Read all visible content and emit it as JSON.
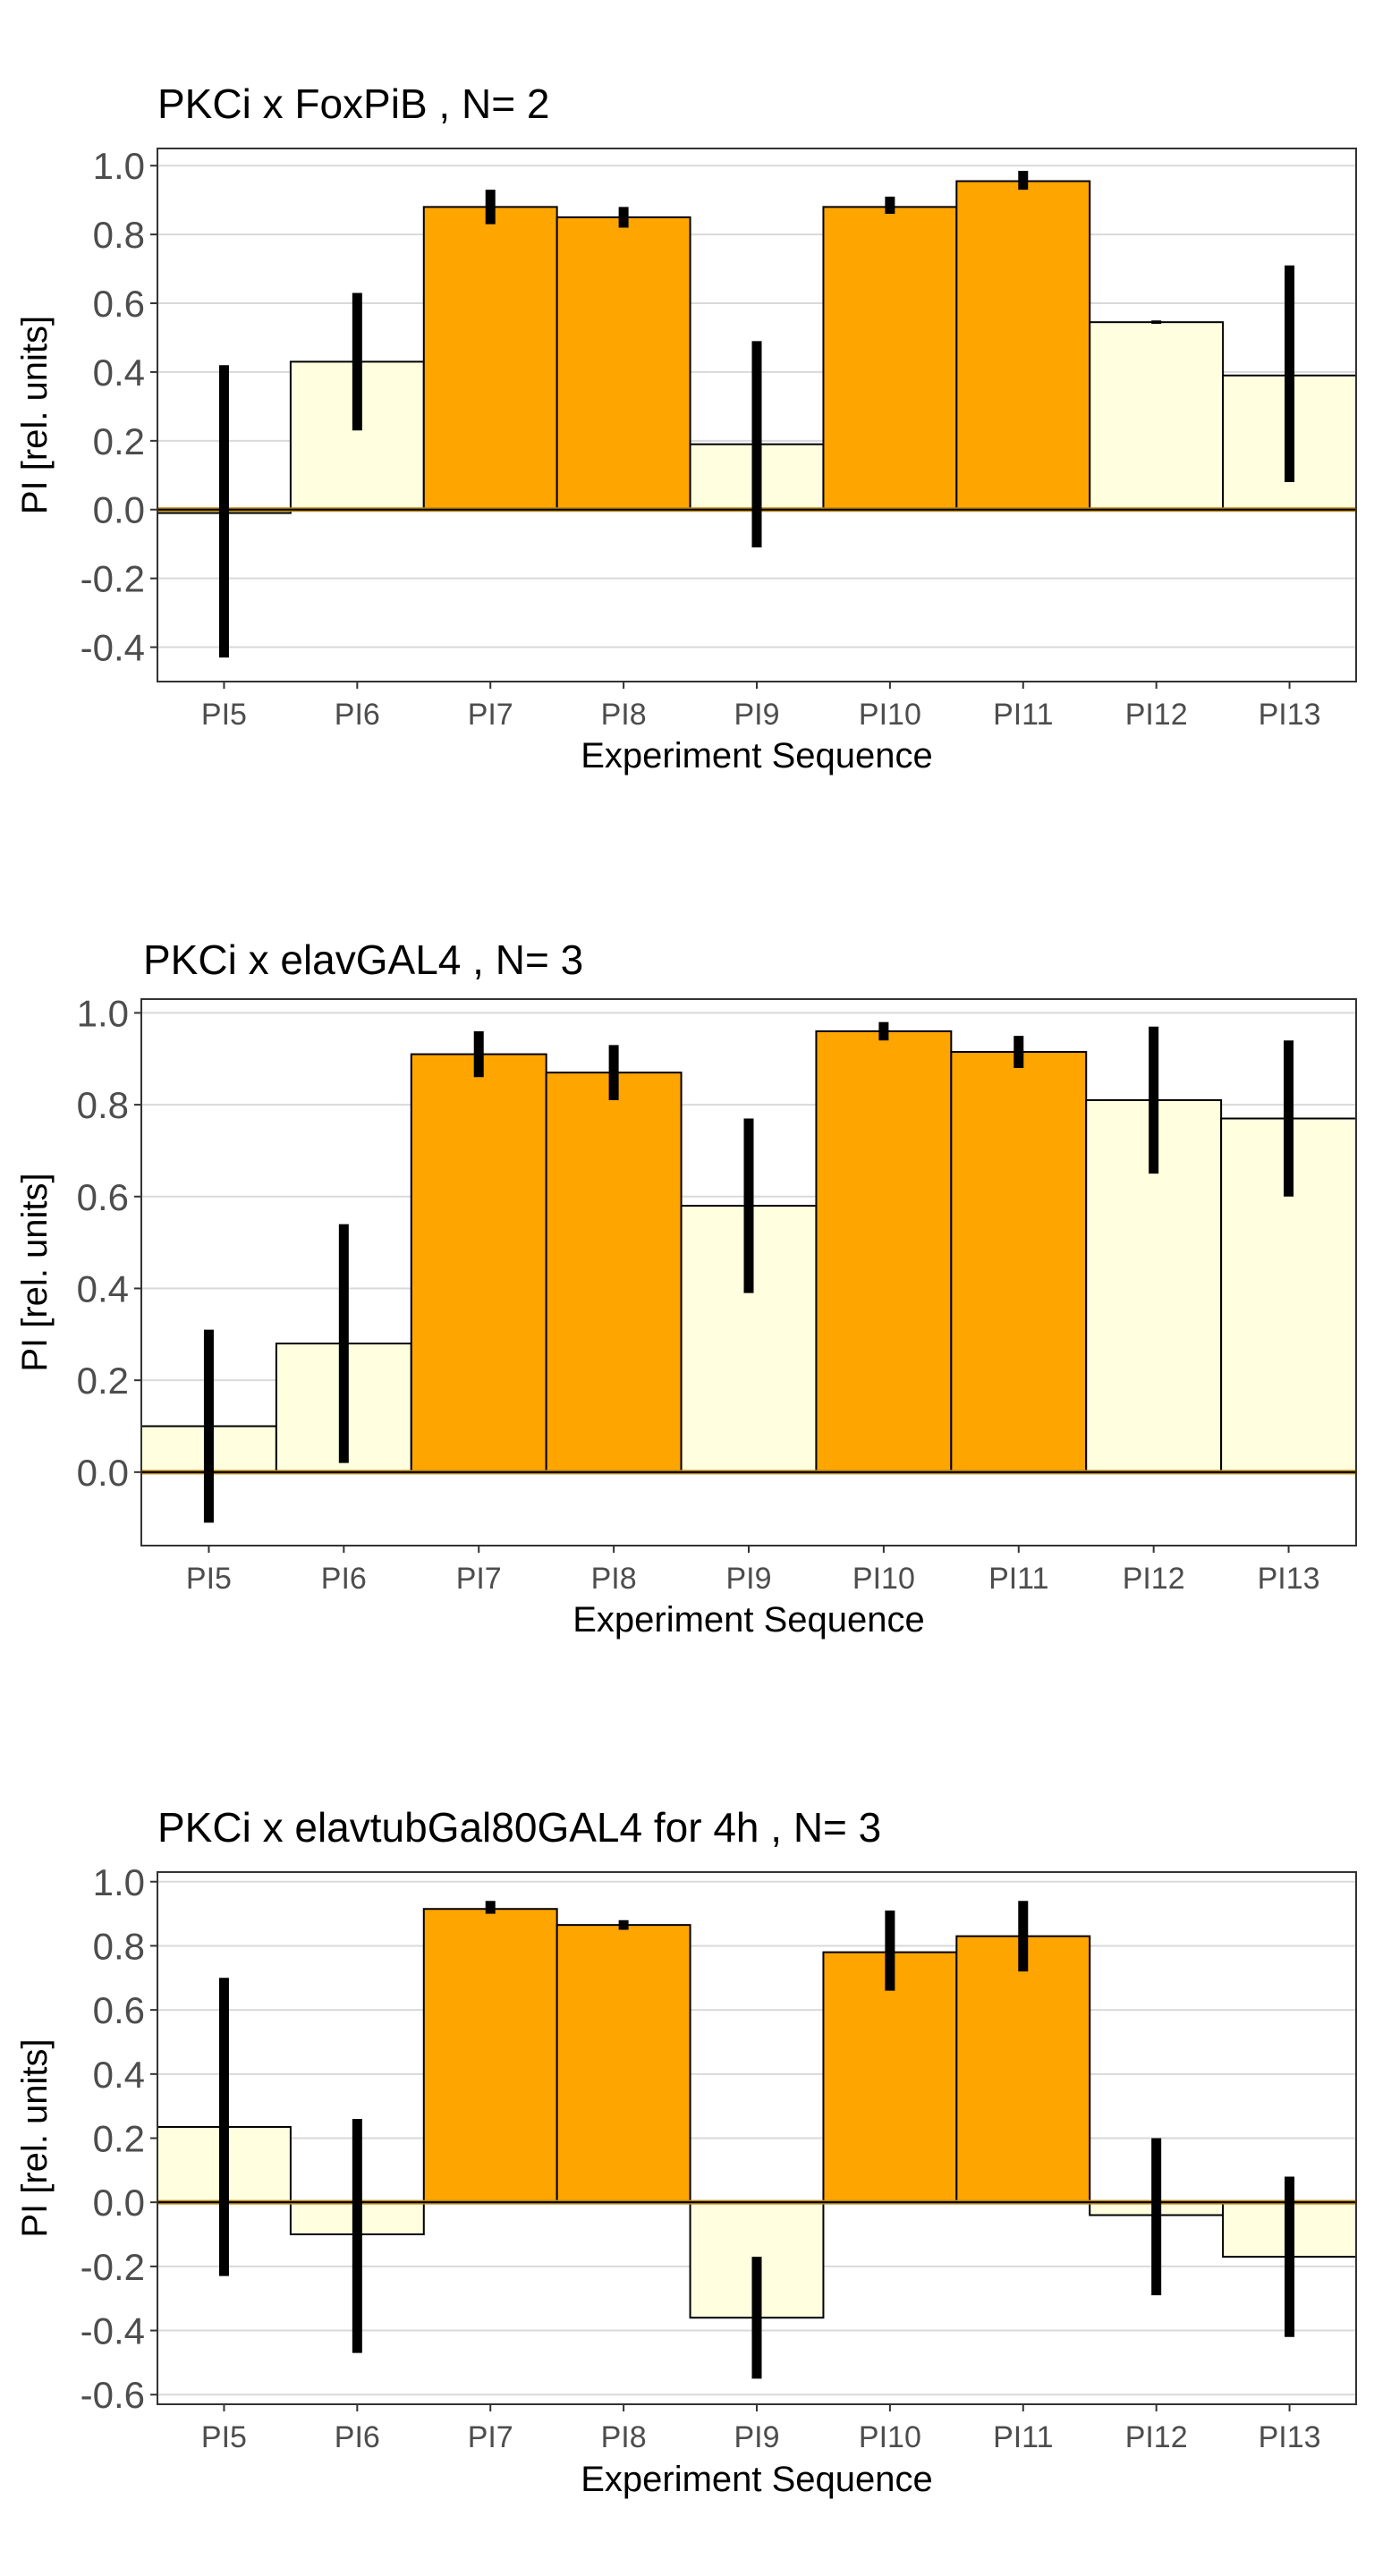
{
  "colors": {
    "trained": "#ffa500",
    "untrained": "#ffffe0",
    "error_bar": "#000000",
    "zero_line": "#b8860b",
    "grid": "#d9d9d9",
    "panel_border": "#333333"
  },
  "chart_data": [
    {
      "type": "bar",
      "title": "PKCi x FoxPiB , N= 2",
      "xlabel": "Experiment Sequence",
      "ylabel": "PI [rel. units]",
      "categories": [
        "PI5",
        "PI6",
        "PI7",
        "PI8",
        "PI9",
        "PI10",
        "PI11",
        "PI12",
        "PI13"
      ],
      "fill_types": [
        "untrained",
        "untrained",
        "trained",
        "trained",
        "untrained",
        "trained",
        "trained",
        "untrained",
        "untrained"
      ],
      "values": [
        -0.01,
        0.43,
        0.88,
        0.85,
        0.19,
        0.88,
        0.955,
        0.545,
        0.39
      ],
      "error_low": [
        -0.43,
        0.23,
        0.83,
        0.82,
        -0.11,
        0.86,
        0.93,
        0.54,
        0.08
      ],
      "error_high": [
        0.42,
        0.63,
        0.93,
        0.88,
        0.49,
        0.91,
        0.985,
        0.55,
        0.71
      ],
      "yticks": [
        "1.0",
        "0.8",
        "0.6",
        "0.4",
        "0.2",
        "0.0",
        "-0.2",
        "-0.4"
      ],
      "ytick_values": [
        1.0,
        0.8,
        0.6,
        0.4,
        0.2,
        0.0,
        -0.2,
        -0.4
      ],
      "ylim": [
        -0.5,
        1.05
      ],
      "grid": true,
      "legend": "none"
    },
    {
      "type": "bar",
      "title": "PKCi x elavGAL4 , N= 3",
      "xlabel": "Experiment Sequence",
      "ylabel": "PI [rel. units]",
      "categories": [
        "PI5",
        "PI6",
        "PI7",
        "PI8",
        "PI9",
        "PI10",
        "PI11",
        "PI12",
        "PI13"
      ],
      "fill_types": [
        "untrained",
        "untrained",
        "trained",
        "trained",
        "untrained",
        "trained",
        "trained",
        "untrained",
        "untrained"
      ],
      "values": [
        0.1,
        0.28,
        0.91,
        0.87,
        0.58,
        0.96,
        0.915,
        0.81,
        0.77
      ],
      "error_low": [
        -0.11,
        0.02,
        0.86,
        0.81,
        0.39,
        0.94,
        0.88,
        0.65,
        0.6
      ],
      "error_high": [
        0.31,
        0.54,
        0.96,
        0.93,
        0.77,
        0.98,
        0.95,
        0.97,
        0.94
      ],
      "yticks": [
        "1.0",
        "0.8",
        "0.6",
        "0.4",
        "0.2",
        "0.0"
      ],
      "ytick_values": [
        1.0,
        0.8,
        0.6,
        0.4,
        0.2,
        0.0
      ],
      "ylim": [
        -0.16,
        1.03
      ],
      "grid": true,
      "legend": "none"
    },
    {
      "type": "bar",
      "title": "PKCi x elavtubGal80GAL4 for 4h , N= 3",
      "xlabel": "Experiment Sequence",
      "ylabel": "PI [rel. units]",
      "categories": [
        "PI5",
        "PI6",
        "PI7",
        "PI8",
        "PI9",
        "PI10",
        "PI11",
        "PI12",
        "PI13"
      ],
      "fill_types": [
        "untrained",
        "untrained",
        "trained",
        "trained",
        "untrained",
        "trained",
        "trained",
        "untrained",
        "untrained"
      ],
      "values": [
        0.235,
        -0.1,
        0.915,
        0.865,
        -0.36,
        0.78,
        0.83,
        -0.04,
        -0.17
      ],
      "error_low": [
        -0.23,
        -0.47,
        0.9,
        0.85,
        -0.55,
        0.66,
        0.72,
        -0.29,
        -0.42
      ],
      "error_high": [
        0.7,
        0.26,
        0.94,
        0.88,
        -0.17,
        0.91,
        0.94,
        0.2,
        0.08
      ],
      "yticks": [
        "1.0",
        "0.8",
        "0.6",
        "0.4",
        "0.2",
        "0.0",
        "-0.2",
        "-0.4",
        "-0.6"
      ],
      "ytick_values": [
        1.0,
        0.8,
        0.6,
        0.4,
        0.2,
        0.0,
        -0.2,
        -0.4,
        -0.6
      ],
      "ylim": [
        -0.63,
        1.03
      ],
      "grid": true,
      "legend": "none"
    }
  ]
}
